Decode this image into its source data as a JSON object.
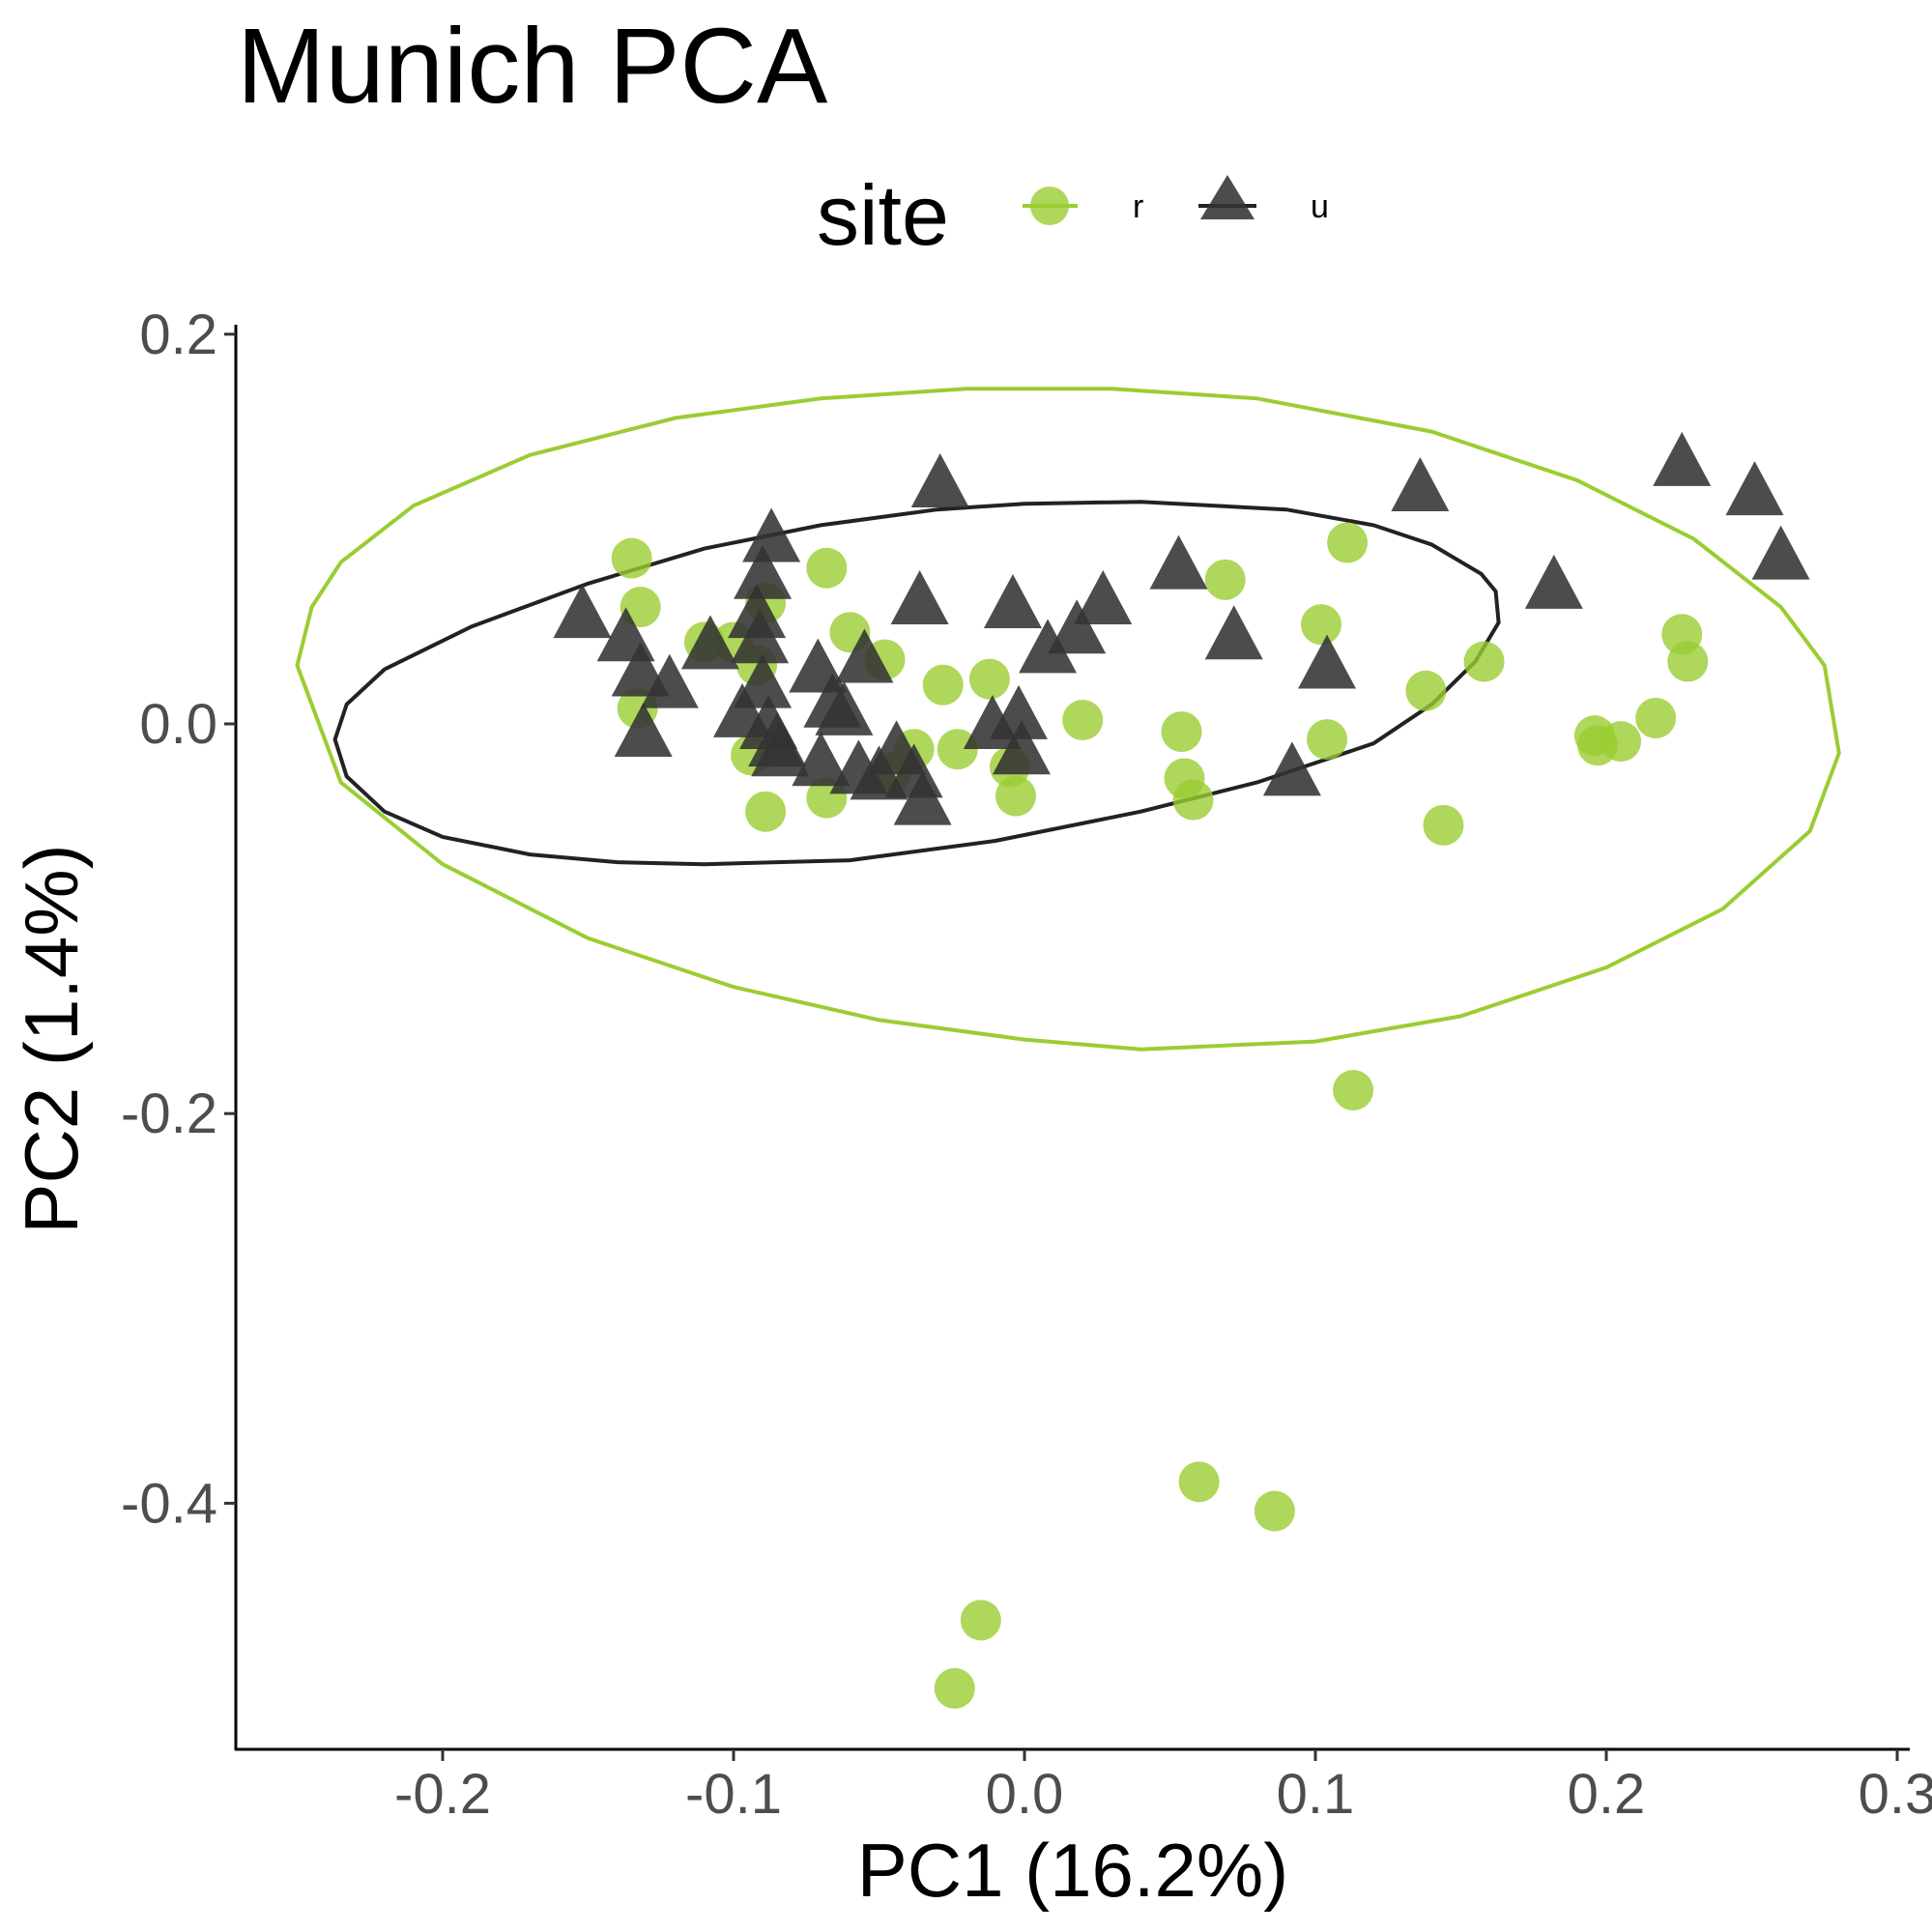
{
  "chart_data": {
    "type": "scatter",
    "title": "Munich PCA",
    "xlabel": "PC1 (16.2%)",
    "ylabel": "PC2 (1.4%)",
    "xlim": [
      -0.27,
      0.3
    ],
    "ylim": [
      -0.53,
      0.205
    ],
    "xticks": [
      -0.2,
      -0.1,
      0.0,
      0.1,
      0.2,
      0.3
    ],
    "xtick_labels": [
      "-0.2",
      "-0.1",
      "0.0",
      "0.1",
      "0.2",
      "0.3"
    ],
    "yticks": [
      0.2,
      0.0,
      -0.2,
      -0.4
    ],
    "ytick_labels": [
      "0.2",
      "0.0",
      "-0.2",
      "-0.4"
    ],
    "grid": false,
    "legend": {
      "title": "site",
      "position": "top"
    },
    "series": [
      {
        "name": "r",
        "color": "#9ACD32",
        "marker": "circle",
        "points": [
          [
            -0.135,
            0.085
          ],
          [
            -0.132,
            0.06
          ],
          [
            -0.133,
            0.008
          ],
          [
            -0.068,
            0.08
          ],
          [
            -0.089,
            0.062
          ],
          [
            -0.092,
            0.03
          ],
          [
            -0.06,
            0.047
          ],
          [
            -0.048,
            0.033
          ],
          [
            -0.028,
            0.02
          ],
          [
            -0.012,
            0.023
          ],
          [
            0.02,
            0.002
          ],
          [
            -0.094,
            -0.016
          ],
          [
            -0.038,
            -0.013
          ],
          [
            -0.023,
            -0.013
          ],
          [
            -0.005,
            -0.022
          ],
          [
            -0.046,
            -0.025
          ],
          [
            -0.089,
            -0.045
          ],
          [
            -0.068,
            -0.038
          ],
          [
            -0.003,
            -0.037
          ],
          [
            0.054,
            -0.004
          ],
          [
            0.055,
            -0.028
          ],
          [
            0.058,
            -0.039
          ],
          [
            0.069,
            0.074
          ],
          [
            0.102,
            0.051
          ],
          [
            0.111,
            0.093
          ],
          [
            0.104,
            -0.008
          ],
          [
            0.138,
            0.017
          ],
          [
            0.158,
            0.032
          ],
          [
            0.144,
            -0.052
          ],
          [
            0.196,
            -0.006
          ],
          [
            0.197,
            -0.011
          ],
          [
            0.205,
            -0.009
          ],
          [
            0.217,
            0.003
          ],
          [
            0.226,
            0.046
          ],
          [
            0.228,
            0.032
          ],
          [
            0.113,
            -0.188
          ],
          [
            0.06,
            -0.389
          ],
          [
            0.086,
            -0.404
          ],
          [
            -0.015,
            -0.46
          ],
          [
            -0.024,
            -0.495
          ],
          [
            -0.1,
            0.042
          ],
          [
            -0.11,
            0.042
          ]
        ]
      },
      {
        "name": "u",
        "color": "#333333",
        "marker": "triangle",
        "points": [
          [
            -0.029,
            0.125
          ],
          [
            -0.087,
            0.097
          ],
          [
            -0.09,
            0.078
          ],
          [
            -0.092,
            0.058
          ],
          [
            -0.091,
            0.045
          ],
          [
            -0.152,
            0.058
          ],
          [
            -0.137,
            0.046
          ],
          [
            -0.132,
            0.028
          ],
          [
            -0.122,
            0.022
          ],
          [
            -0.108,
            0.042
          ],
          [
            -0.09,
            0.022
          ],
          [
            -0.097,
            0.007
          ],
          [
            -0.088,
            0.001
          ],
          [
            -0.085,
            -0.008
          ],
          [
            -0.084,
            -0.013
          ],
          [
            -0.131,
            -0.003
          ],
          [
            -0.071,
            0.03
          ],
          [
            -0.055,
            0.035
          ],
          [
            -0.066,
            0.012
          ],
          [
            -0.062,
            0.008
          ],
          [
            -0.07,
            -0.018
          ],
          [
            -0.057,
            -0.022
          ],
          [
            -0.05,
            -0.025
          ],
          [
            -0.044,
            -0.012
          ],
          [
            -0.038,
            -0.024
          ],
          [
            -0.035,
            -0.038
          ],
          [
            -0.036,
            0.065
          ],
          [
            -0.011,
            0.001
          ],
          [
            -0.002,
            0.006
          ],
          [
            -0.001,
            -0.012
          ],
          [
            -0.004,
            0.063
          ],
          [
            0.008,
            0.04
          ],
          [
            0.018,
            0.05
          ],
          [
            0.027,
            0.065
          ],
          [
            0.053,
            0.083
          ],
          [
            0.072,
            0.047
          ],
          [
            0.092,
            -0.023
          ],
          [
            0.104,
            0.032
          ],
          [
            0.136,
            0.123
          ],
          [
            0.182,
            0.073
          ],
          [
            0.226,
            0.136
          ],
          [
            0.251,
            0.121
          ],
          [
            0.26,
            0.088
          ]
        ]
      }
    ],
    "ellipses": [
      {
        "series": "r",
        "color": "#9ACD32",
        "points": [
          [
            -0.25,
            0.03
          ],
          [
            -0.235,
            -0.03
          ],
          [
            -0.2,
            -0.072
          ],
          [
            -0.15,
            -0.11
          ],
          [
            -0.1,
            -0.135
          ],
          [
            -0.05,
            -0.152
          ],
          [
            0.0,
            -0.162
          ],
          [
            0.04,
            -0.167
          ],
          [
            0.1,
            -0.163
          ],
          [
            0.15,
            -0.15
          ],
          [
            0.2,
            -0.125
          ],
          [
            0.24,
            -0.095
          ],
          [
            0.27,
            -0.055
          ],
          [
            0.28,
            -0.015
          ],
          [
            0.275,
            0.03
          ],
          [
            0.26,
            0.06
          ],
          [
            0.23,
            0.095
          ],
          [
            0.19,
            0.125
          ],
          [
            0.14,
            0.15
          ],
          [
            0.08,
            0.167
          ],
          [
            0.03,
            0.172
          ],
          [
            -0.02,
            0.172
          ],
          [
            -0.07,
            0.167
          ],
          [
            -0.12,
            0.157
          ],
          [
            -0.17,
            0.138
          ],
          [
            -0.21,
            0.112
          ],
          [
            -0.235,
            0.083
          ],
          [
            -0.245,
            0.06
          ],
          [
            -0.25,
            0.03
          ]
        ]
      },
      {
        "series": "u",
        "color": "#222222",
        "points": [
          [
            -0.237,
            -0.008
          ],
          [
            -0.233,
            -0.027
          ],
          [
            -0.22,
            -0.045
          ],
          [
            -0.2,
            -0.058
          ],
          [
            -0.17,
            -0.067
          ],
          [
            -0.14,
            -0.071
          ],
          [
            -0.11,
            -0.072
          ],
          [
            -0.06,
            -0.07
          ],
          [
            -0.01,
            -0.06
          ],
          [
            0.04,
            -0.045
          ],
          [
            0.08,
            -0.03
          ],
          [
            0.12,
            -0.01
          ],
          [
            0.14,
            0.01
          ],
          [
            0.155,
            0.032
          ],
          [
            0.163,
            0.052
          ],
          [
            0.162,
            0.068
          ],
          [
            0.157,
            0.077
          ],
          [
            0.14,
            0.092
          ],
          [
            0.12,
            0.102
          ],
          [
            0.09,
            0.11
          ],
          [
            0.04,
            0.114
          ],
          [
            0.0,
            0.113
          ],
          [
            -0.03,
            0.11
          ],
          [
            -0.07,
            0.102
          ],
          [
            -0.11,
            0.09
          ],
          [
            -0.15,
            0.072
          ],
          [
            -0.19,
            0.05
          ],
          [
            -0.22,
            0.028
          ],
          [
            -0.233,
            0.01
          ],
          [
            -0.237,
            -0.008
          ]
        ]
      }
    ]
  }
}
